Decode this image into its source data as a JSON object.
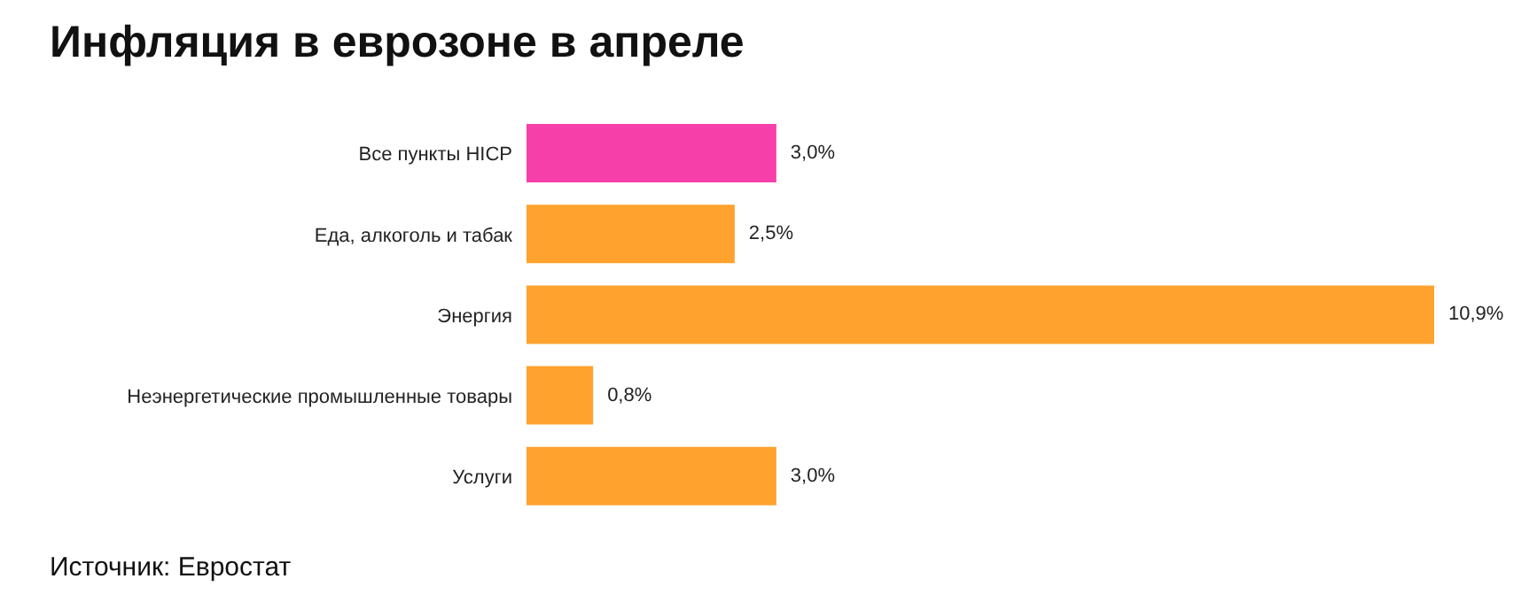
{
  "chart_data": {
    "type": "bar",
    "orientation": "horizontal",
    "title": "Инфляция в еврозоне в апреле",
    "categories": [
      "Все пункты HICP",
      "Еда, алкоголь и табак",
      "Энергия",
      "Неэнергетические промышленные товары",
      "Услуги"
    ],
    "values": [
      3.0,
      2.5,
      10.9,
      0.8,
      3.0
    ],
    "colors": [
      "#f73fa9",
      "#ffa22e",
      "#ffa22e",
      "#ffa22e",
      "#ffa22e"
    ],
    "value_labels": [
      "3,0%",
      "2,5%",
      "10,9%",
      "0,8%",
      "3,0%"
    ],
    "annotations": [
      "Источник: Евростат"
    ]
  }
}
